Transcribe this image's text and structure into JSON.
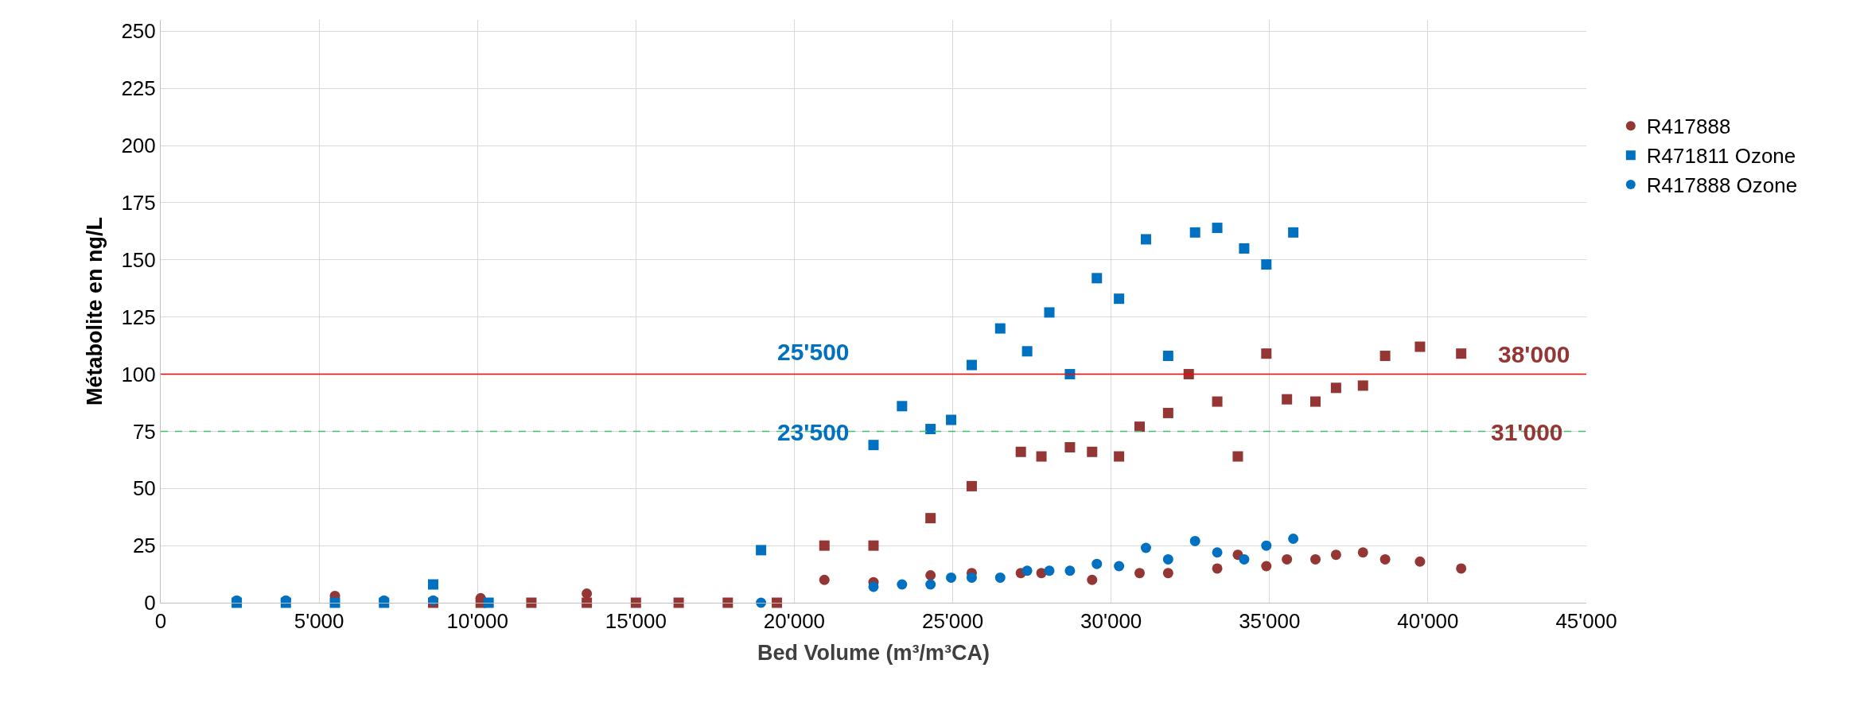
{
  "chart_data": {
    "type": "scatter",
    "xlabel": "Bed Volume (m³/m³CA)",
    "ylabel": "Métabolite en ng/L",
    "xlim": [
      0,
      45000
    ],
    "ylim": [
      0,
      255
    ],
    "xticks": [
      0,
      {
        "value": 5000,
        "label": "5'000"
      },
      {
        "value": 10000,
        "label": "10'000"
      },
      {
        "value": 15000,
        "label": "15'000"
      },
      {
        "value": 20000,
        "label": "20'000"
      },
      {
        "value": 25000,
        "label": "25'000"
      },
      {
        "value": 30000,
        "label": "30'000"
      },
      {
        "value": 35000,
        "label": "35'000"
      },
      {
        "value": 40000,
        "label": "40'000"
      },
      {
        "value": 45000,
        "label": "45'000"
      }
    ],
    "yticks": [
      0,
      25,
      50,
      75,
      100,
      125,
      150,
      175,
      200,
      225,
      250
    ],
    "grid": true,
    "legend": "right",
    "series": [
      {
        "color": "#943634",
        "marker": "square",
        "x": [
          8600,
          10100,
          11700,
          13450,
          15000,
          16350,
          17900,
          19450,
          20950,
          22500,
          24300,
          25600,
          27150,
          27800,
          28700,
          29400,
          30250,
          30900,
          31800,
          32450,
          33350,
          34000,
          34900,
          35550,
          36450,
          37100,
          37950,
          38650,
          39750,
          41050
        ],
        "values": [
          0,
          0,
          0,
          0,
          0,
          0,
          0,
          0,
          25,
          25,
          37,
          51,
          66,
          64,
          68,
          66,
          64,
          77,
          83,
          100,
          88,
          64,
          109,
          89,
          88,
          94,
          95,
          108,
          112,
          109
        ]
      },
      {
        "name": "R417888",
        "color": "#943634",
        "marker": "circle",
        "x": [
          5500,
          10100,
          13450,
          20950,
          22500,
          24300,
          25600,
          27150,
          27800,
          29400,
          30900,
          31800,
          33350,
          34000,
          34900,
          35550,
          36450,
          37100,
          37950,
          38650,
          39750,
          41050
        ],
        "values": [
          3,
          2,
          4,
          10,
          9,
          12,
          13,
          13,
          13,
          10,
          13,
          13,
          15,
          21,
          16,
          19,
          19,
          21,
          22,
          19,
          18,
          15
        ]
      },
      {
        "name": "R471811 Ozone",
        "color": "#0070c0",
        "marker": "square",
        "x": [
          2400,
          3950,
          5500,
          7050,
          8600,
          10350,
          18950,
          22500,
          23400,
          24300,
          24950,
          25600,
          26500,
          27350,
          28050,
          28700,
          29550,
          30250,
          31100,
          31800,
          32650,
          33350,
          34200,
          34900,
          35750
        ],
        "values": [
          0,
          0,
          0,
          0,
          8,
          0,
          23,
          69,
          86,
          76,
          80,
          104,
          120,
          110,
          127,
          100,
          142,
          133,
          159,
          108,
          162,
          164,
          155,
          148,
          162
        ]
      },
      {
        "name": "R417888 Ozone",
        "color": "#0070c0",
        "marker": "circle",
        "x": [
          2400,
          3950,
          7050,
          8600,
          18950,
          22500,
          23400,
          24300,
          24950,
          25600,
          26500,
          27350,
          28050,
          28700,
          29550,
          30250,
          31100,
          31800,
          32650,
          33350,
          34200,
          34900,
          35750
        ],
        "values": [
          1,
          1,
          1,
          1,
          0,
          7,
          8,
          8,
          11,
          11,
          11,
          14,
          14,
          14,
          17,
          16,
          24,
          19,
          27,
          22,
          19,
          25,
          28
        ]
      }
    ],
    "ref_lines": [
      {
        "axis": "y",
        "value": 100,
        "color": "#ff0000",
        "line_style": "solid"
      },
      {
        "axis": "y",
        "value": 75,
        "color": "#3dbf6e",
        "line_style": "dashed"
      }
    ],
    "annotations": [
      "25'500",
      "23'500",
      "38'000",
      "31'000"
    ]
  }
}
